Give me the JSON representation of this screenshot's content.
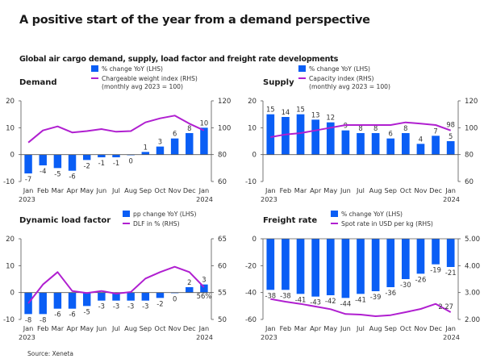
{
  "page": {
    "title": "A positive start of the year from a demand perspective",
    "subtitle": "Global air cargo demand, supply, load factor and freight rate developments",
    "source": "Source: Xeneta"
  },
  "colors": {
    "bar": "#0a5ef5",
    "line": "#b01fd0",
    "axis": "#555555"
  },
  "chart_data": [
    {
      "id": "demand",
      "type": "bar+line",
      "title": "Demand",
      "categories": [
        "Jan",
        "Feb",
        "Mar",
        "Apr",
        "May",
        "Jun",
        "Jul",
        "Aug",
        "Sep",
        "Oct",
        "Nov",
        "Dec",
        "Jan"
      ],
      "year_labels": {
        "start": "2023",
        "end": "2024"
      },
      "legend": [
        "% change YoY (LHS)",
        "Chargeable weight index (RHS)",
        "(monthly avg 2023 = 100)"
      ],
      "series": [
        {
          "name": "% change YoY (LHS)",
          "axis": "left",
          "kind": "bar",
          "values": [
            -7,
            -4,
            -5,
            -6,
            -2,
            -1,
            -1,
            0,
            1,
            3,
            6,
            8,
            10
          ],
          "labels": [
            "-7",
            "-4",
            "-5",
            "-6",
            "-2",
            "-1",
            "-1",
            "0",
            "1",
            "3",
            "6",
            "8",
            "10"
          ]
        },
        {
          "name": "Chargeable weight index (RHS)",
          "axis": "right",
          "kind": "line",
          "values": [
            89,
            98,
            101,
            96.5,
            97.5,
            99,
            97,
            97.5,
            104,
            107,
            109,
            103,
            98
          ]
        }
      ],
      "ylim_left": [
        -10,
        20
      ],
      "yticks_left": [
        -10,
        0,
        10,
        20
      ],
      "ylim_right": [
        60,
        120
      ],
      "yticks_right": [
        60,
        80,
        100,
        120
      ],
      "yticks_right_labels": [
        "60",
        "80",
        "100",
        "120"
      ],
      "line_end_label": ""
    },
    {
      "id": "supply",
      "type": "bar+line",
      "title": "Supply",
      "categories": [
        "Jan",
        "Feb",
        "Mar",
        "Apr",
        "May",
        "Jun",
        "Jul",
        "Aug",
        "Sep",
        "Oct",
        "Nov",
        "Dec",
        "Jan"
      ],
      "year_labels": {
        "start": "2023",
        "end": "2024"
      },
      "legend": [
        "% change YoY (LHS)",
        "Capacity index (RHS)",
        "(monthly avg 2023 = 100)"
      ],
      "series": [
        {
          "name": "% change YoY (LHS)",
          "axis": "left",
          "kind": "bar",
          "values": [
            15,
            14,
            15,
            13,
            12,
            9,
            8,
            8,
            6,
            8,
            4,
            7,
            5
          ],
          "labels": [
            "15",
            "14",
            "15",
            "13",
            "12",
            "9",
            "8",
            "8",
            "6",
            "8",
            "4",
            "7",
            "5"
          ]
        },
        {
          "name": "Capacity index (RHS)",
          "axis": "right",
          "kind": "line",
          "values": [
            93,
            95,
            96,
            98,
            100,
            102,
            102,
            102,
            102,
            104,
            103,
            102,
            98
          ]
        }
      ],
      "ylim_left": [
        -10,
        20
      ],
      "yticks_left": [
        -10,
        0,
        10,
        20
      ],
      "ylim_right": [
        60,
        120
      ],
      "yticks_right": [
        60,
        80,
        100,
        120
      ],
      "yticks_right_labels": [
        "60",
        "80",
        "100",
        "120"
      ],
      "line_end_label": "98"
    },
    {
      "id": "dlf",
      "type": "bar+line",
      "title": "Dynamic load factor",
      "categories": [
        "Jan",
        "Feb",
        "Mar",
        "Apr",
        "May",
        "Jun",
        "Jul",
        "Aug",
        "Sep",
        "Oct",
        "Nov",
        "Dec",
        "Jan"
      ],
      "year_labels": {
        "start": "2023",
        "end": "2024"
      },
      "legend": [
        "pp change YoY (LHS)",
        "DLF in % (RHS)"
      ],
      "series": [
        {
          "name": "pp change YoY (LHS)",
          "axis": "left",
          "kind": "bar",
          "values": [
            -8,
            -8,
            -6,
            -6,
            -5,
            -3,
            -3,
            -3,
            -3,
            -2,
            0,
            2,
            3
          ],
          "labels": [
            "-8",
            "-8",
            "-6",
            "-6",
            "-5",
            "-3",
            "-3",
            "-3",
            "-3",
            "-2",
            "0",
            "2",
            "3"
          ]
        },
        {
          "name": "DLF in % (RHS)",
          "axis": "right",
          "kind": "line",
          "values": [
            53,
            56.5,
            58.8,
            55.3,
            54.9,
            55.3,
            54.8,
            55.1,
            57.6,
            58.8,
            59.8,
            58.8,
            56
          ]
        }
      ],
      "ylim_left": [
        -10,
        20
      ],
      "yticks_left": [
        -10,
        0,
        10,
        20
      ],
      "ylim_right": [
        50,
        65
      ],
      "yticks_right": [
        50,
        55,
        60,
        65
      ],
      "yticks_right_labels": [
        "50",
        "55",
        "60",
        "65"
      ],
      "line_end_label": "56%"
    },
    {
      "id": "freight",
      "type": "bar+line",
      "title": "Freight rate",
      "categories": [
        "Jan",
        "Feb",
        "Mar",
        "Apr",
        "May",
        "Jun",
        "Jul",
        "Aug",
        "Sep",
        "Oct",
        "Nov",
        "Dec",
        "Jan"
      ],
      "year_labels": {
        "start": "2023",
        "end": "2024"
      },
      "legend": [
        "% change YoY (LHS)",
        "Spot rate in USD per kg (RHS)"
      ],
      "series": [
        {
          "name": "% change YoY (LHS)",
          "axis": "left",
          "kind": "bar",
          "values": [
            -38,
            -38,
            -41,
            -43,
            -42,
            -44,
            -41,
            -39,
            -36,
            -30,
            -26,
            -19,
            -21
          ],
          "labels": [
            "-38",
            "-38",
            "-41",
            "-43",
            "-42",
            "-44",
            "-41",
            "-39",
            "-36",
            "-30",
            "-26",
            "-19",
            "-21"
          ]
        },
        {
          "name": "Spot rate in USD per kg (RHS)",
          "axis": "right",
          "kind": "line",
          "values": [
            2.76,
            2.66,
            2.58,
            2.48,
            2.38,
            2.2,
            2.18,
            2.12,
            2.16,
            2.27,
            2.39,
            2.58,
            2.27
          ]
        }
      ],
      "ylim_left": [
        -60,
        0
      ],
      "yticks_left": [
        -60,
        -40,
        -20,
        0
      ],
      "ylim_right": [
        2,
        5
      ],
      "yticks_right": [
        2,
        3,
        4,
        5
      ],
      "yticks_right_labels": [
        "2.00",
        "3.00",
        "4.00",
        "5.00"
      ],
      "line_end_label": "2.27"
    }
  ]
}
